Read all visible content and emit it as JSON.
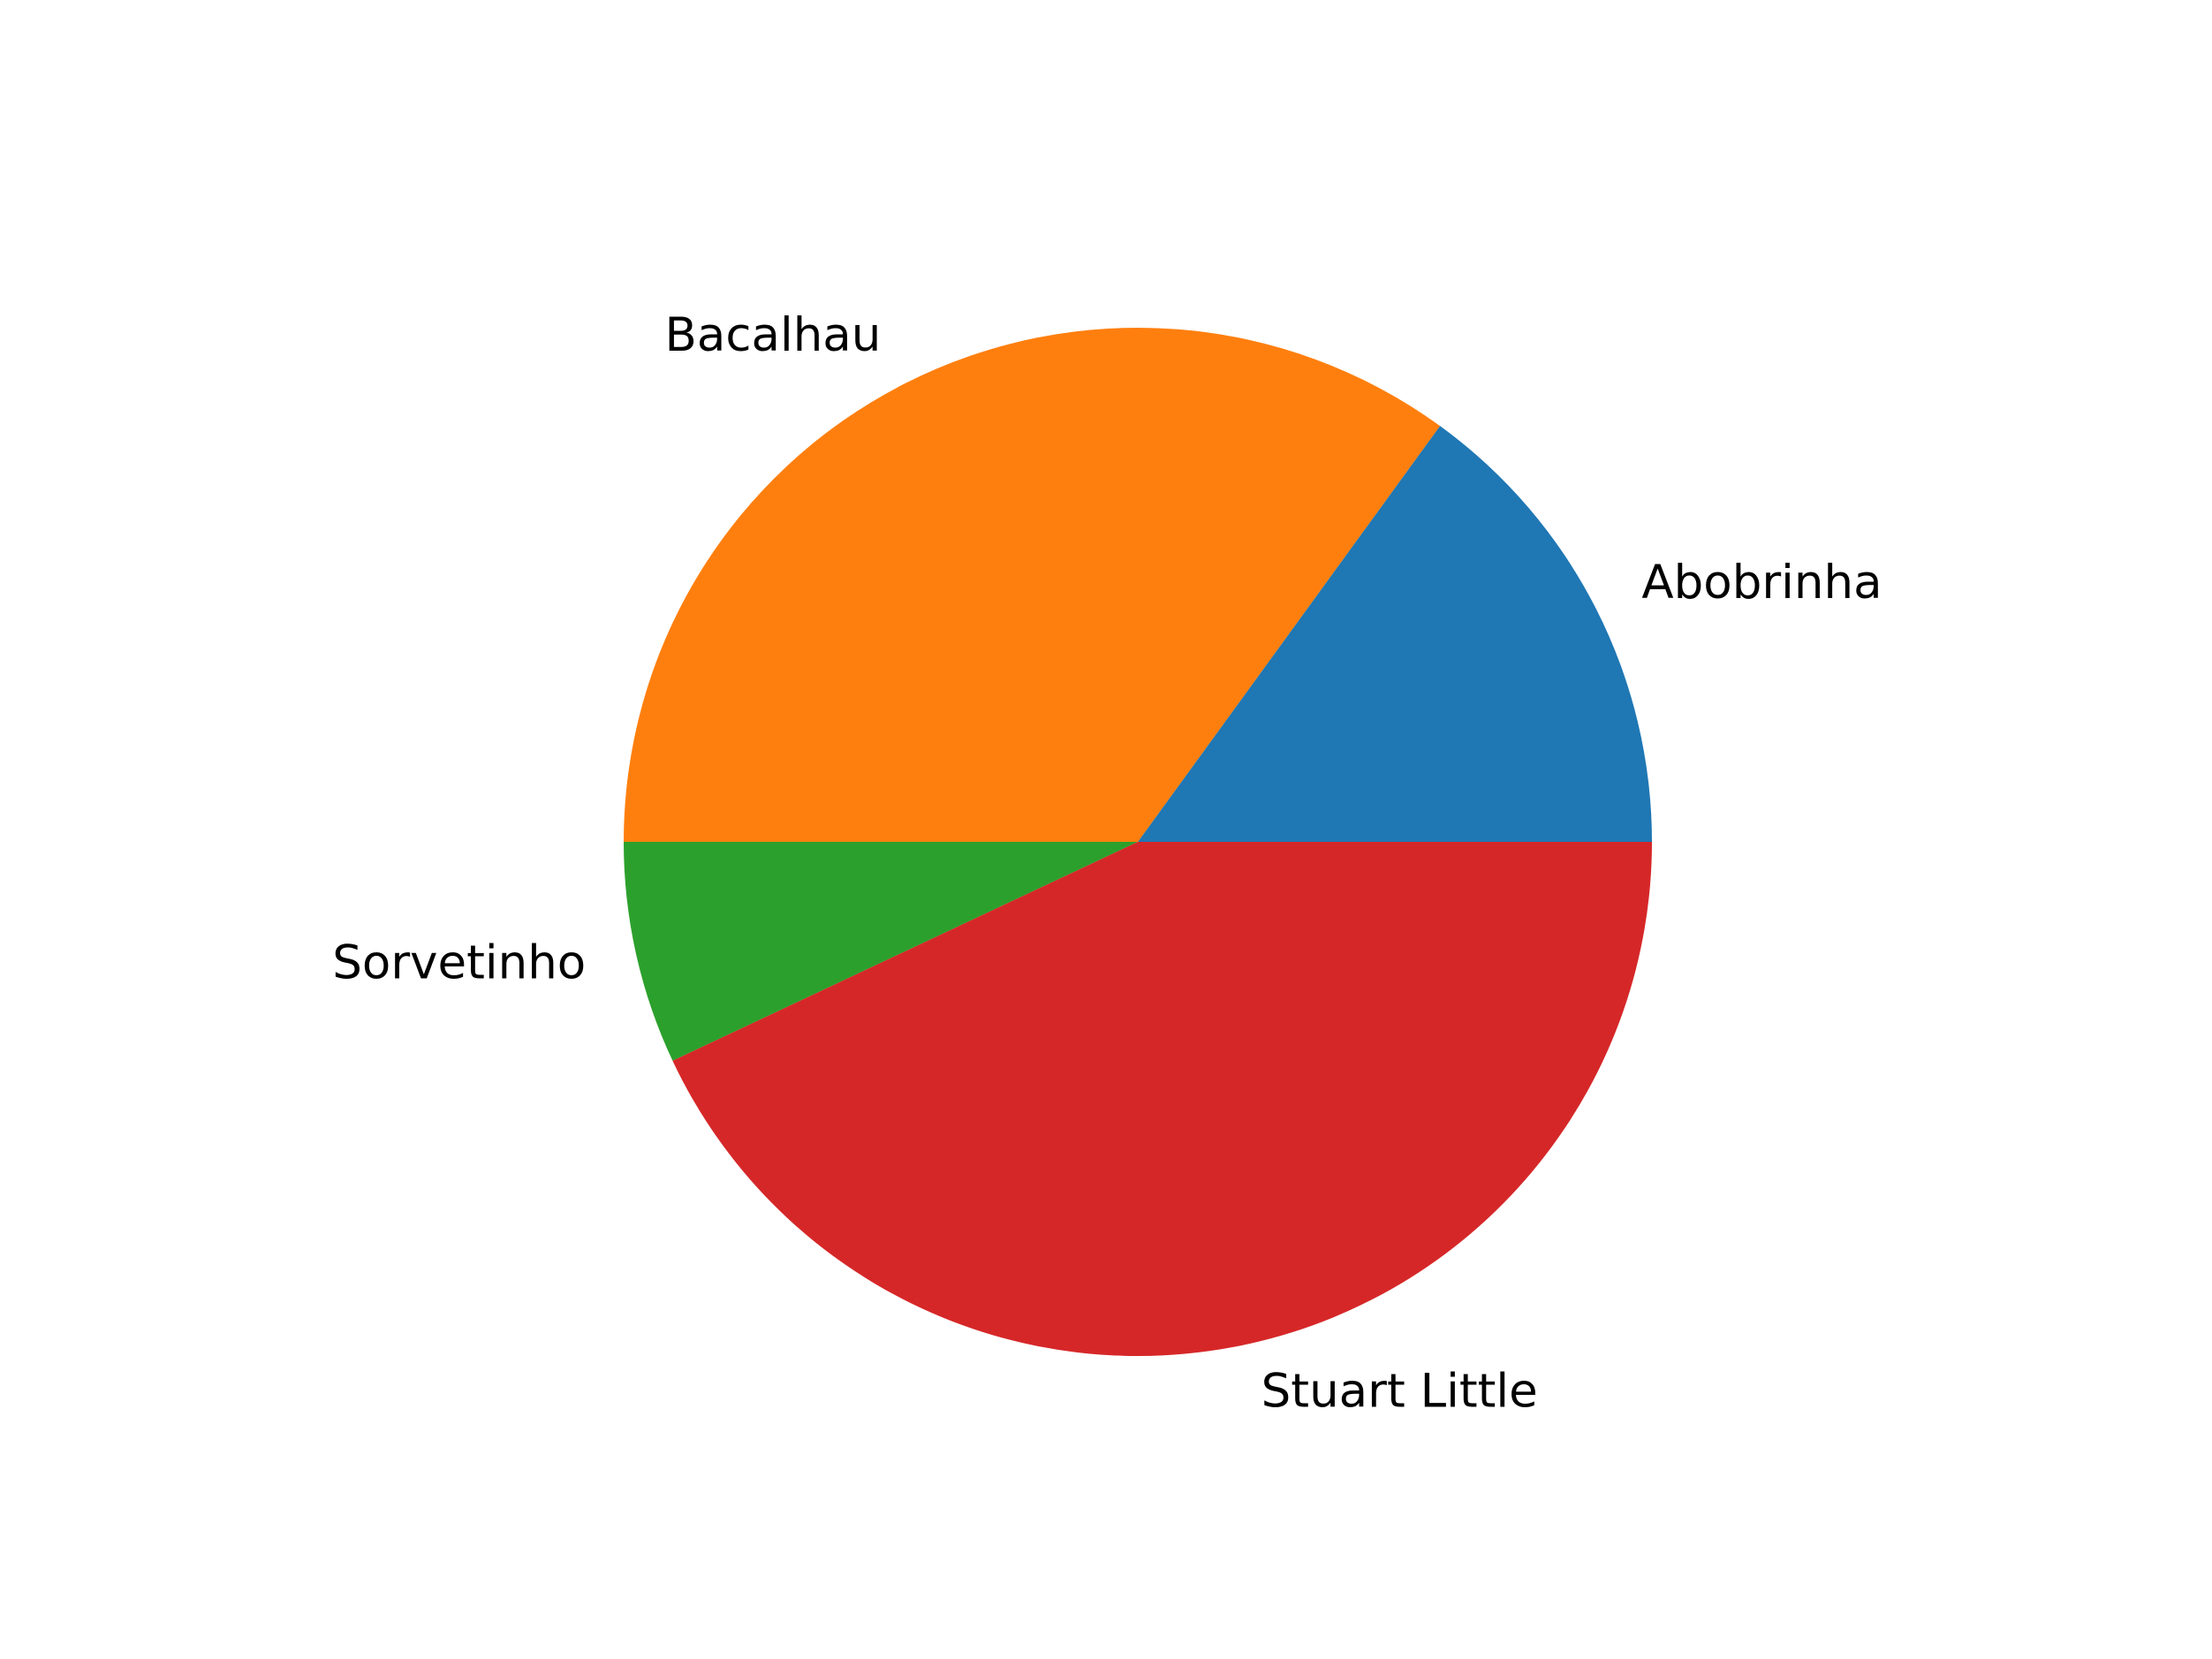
{
  "chart_data": {
    "type": "pie",
    "title": "",
    "slices": [
      {
        "label": "Abobrinha",
        "value": 15,
        "color": "#1f77b4"
      },
      {
        "label": "Bacalhau",
        "value": 35,
        "color": "#ff7f0e"
      },
      {
        "label": "Sorvetinho",
        "value": 7,
        "color": "#2ca02c"
      },
      {
        "label": "Stuart Little",
        "value": 43,
        "color": "#d62728"
      }
    ],
    "start_angle_deg": 0,
    "direction": "counterclockwise"
  }
}
